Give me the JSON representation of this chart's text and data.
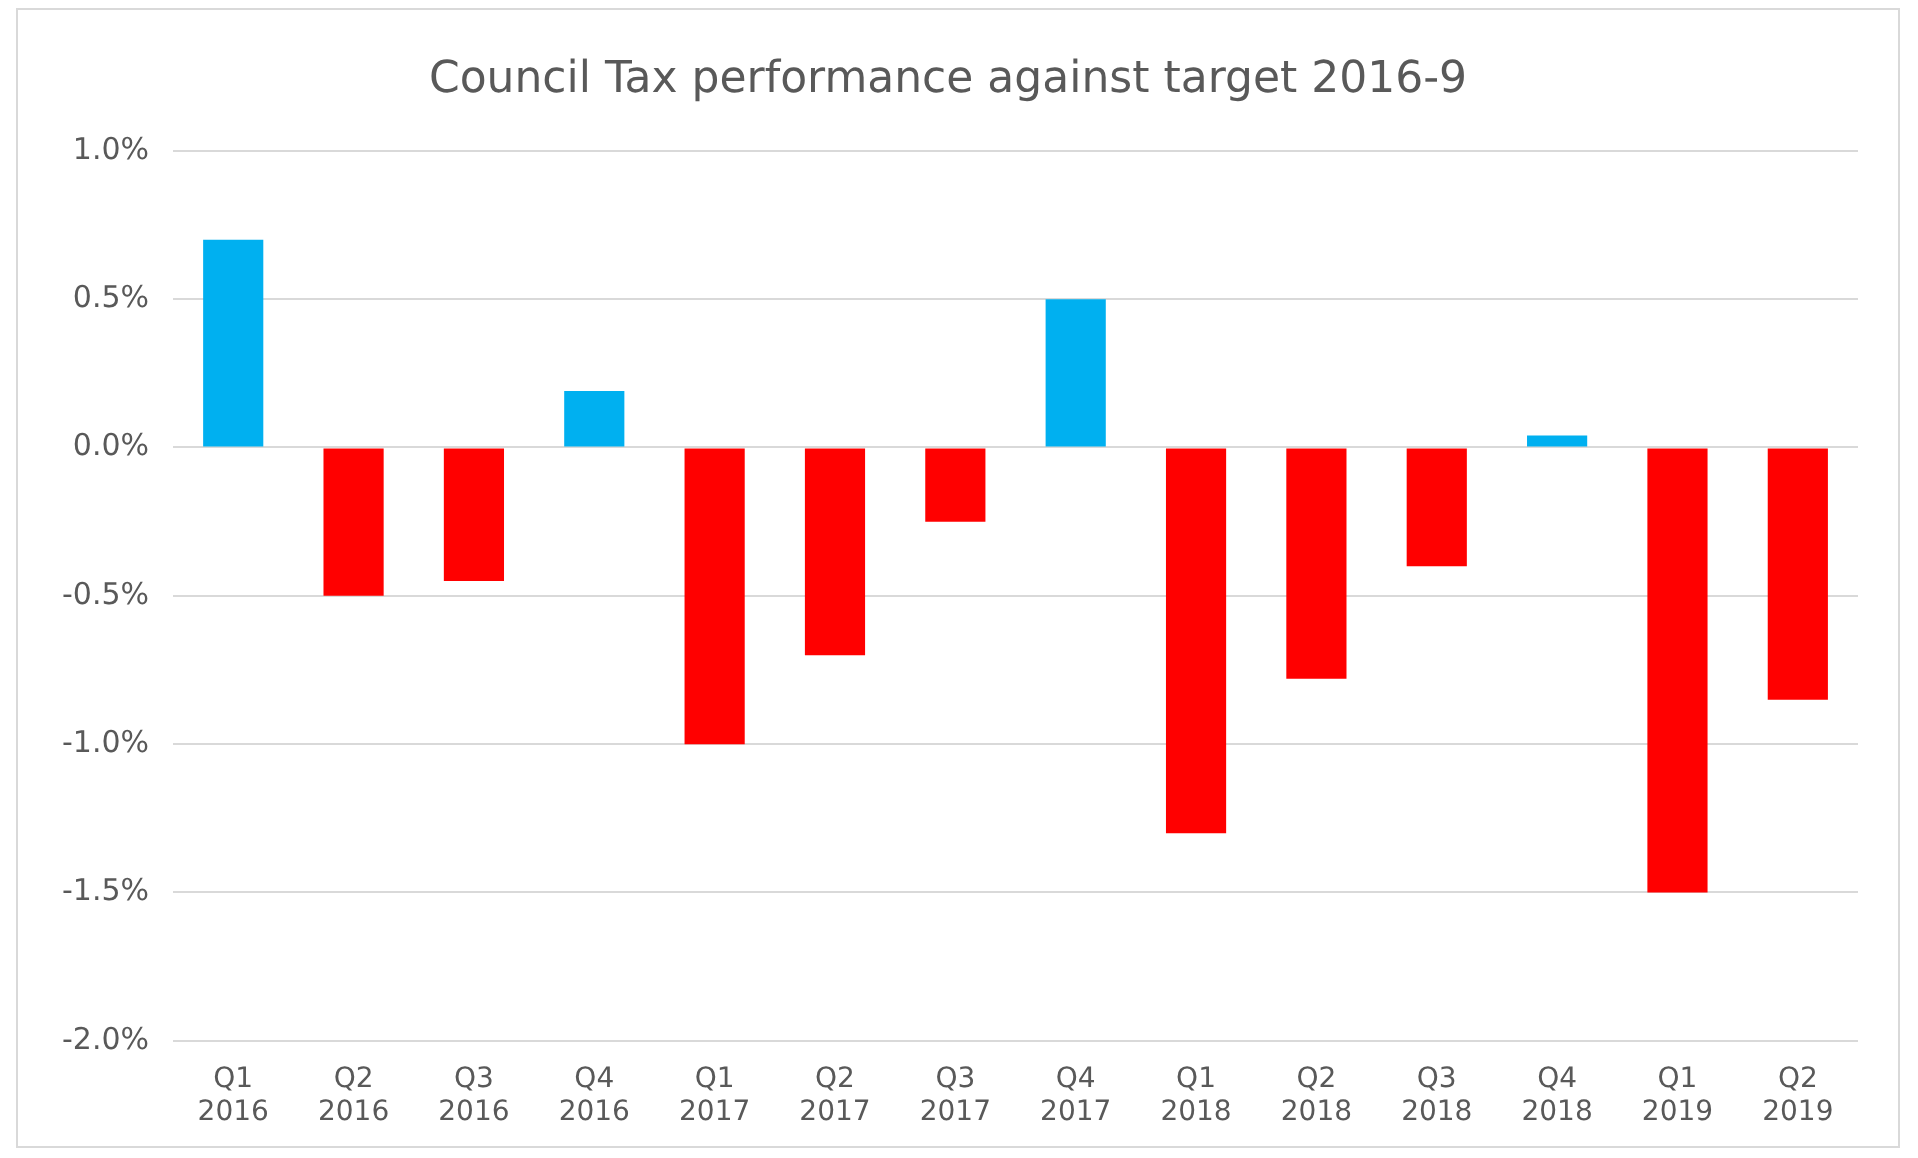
{
  "chart_data": {
    "type": "bar",
    "title": "Council Tax performance against target 2016-9",
    "categories": [
      "Q1 2016",
      "Q2 2016",
      "Q3 2016",
      "Q4 2016",
      "Q1 2017",
      "Q2 2017",
      "Q3 2017",
      "Q4 2017",
      "Q1 2018",
      "Q2 2018",
      "Q3 2018",
      "Q4 2018",
      "Q1 2019",
      "Q2 2019"
    ],
    "values": [
      0.7,
      -0.5,
      -0.45,
      0.19,
      -1.0,
      -0.7,
      -0.25,
      0.5,
      -1.3,
      -0.78,
      -0.4,
      0.04,
      -1.5,
      -0.85
    ],
    "colors": [
      "#00b0f0",
      "#ff0000",
      "#ff0000",
      "#00b0f0",
      "#ff0000",
      "#ff0000",
      "#ff0000",
      "#00b0f0",
      "#ff0000",
      "#ff0000",
      "#ff0000",
      "#00b0f0",
      "#ff0000",
      "#ff0000"
    ],
    "ylim": [
      -2,
      1
    ],
    "yticks": [
      {
        "value": 1,
        "label": "1.0%"
      },
      {
        "value": 0.5,
        "label": "0.5%"
      },
      {
        "value": 0,
        "label": "0.0%"
      },
      {
        "value": -0.5,
        "label": "-0.5%"
      },
      {
        "value": -1,
        "label": "-1.0%"
      },
      {
        "value": -1.5,
        "label": "-1.5%"
      },
      {
        "value": -2,
        "label": "-2.0%"
      }
    ],
    "grid": "y",
    "legend": false
  }
}
